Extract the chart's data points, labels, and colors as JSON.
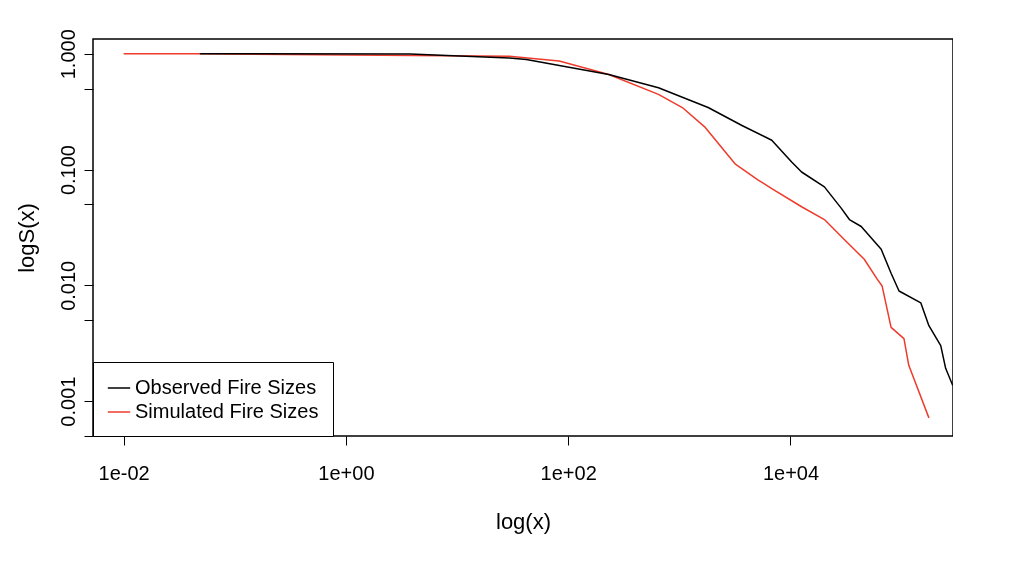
{
  "chart_data": {
    "type": "line",
    "xlabel": "log(x)",
    "ylabel": "logS(x)",
    "log": "xy",
    "grid": false,
    "legend": "bottom left",
    "xlim": [
      0.0053,
      290000
    ],
    "ylim": [
      0.0005,
      1.34
    ],
    "xticks": [
      {
        "value": 0.01,
        "label": "1e-02"
      },
      {
        "value": 1,
        "label": "1e+00"
      },
      {
        "value": 100,
        "label": "1e+02"
      },
      {
        "value": 10000,
        "label": "1e+04"
      }
    ],
    "yticks": [
      {
        "value": 1,
        "label": "1.000"
      },
      {
        "value": 0.5,
        "label": null
      },
      {
        "value": 0.1,
        "label": "0.100"
      },
      {
        "value": 0.05,
        "label": null
      },
      {
        "value": 0.01,
        "label": "0.010"
      },
      {
        "value": 0.005,
        "label": null
      },
      {
        "value": 0.001,
        "label": "0.001"
      },
      {
        "value": 0.0005,
        "label": null
      }
    ],
    "series": [
      {
        "name": "Observed Fire Sizes",
        "color": "#000000",
        "x": [
          0.0485,
          3.77,
          29.5,
          42,
          232,
          649,
          1816,
          3660,
          6790,
          10250,
          12590,
          20200,
          28700,
          33900,
          43300,
          65500,
          80400,
          94800,
          149000,
          176000,
          225000,
          249000,
          288000
        ],
        "values": [
          1,
          0.994,
          0.92,
          0.89,
          0.661,
          0.508,
          0.343,
          0.24,
          0.179,
          0.116,
          0.0952,
          0.0708,
          0.0462,
          0.037,
          0.0322,
          0.0205,
          0.0127,
          0.00893,
          0.00705,
          0.00448,
          0.00302,
          0.00192,
          0.00137
        ]
      },
      {
        "name": "Simulated Fire Sizes",
        "color": "#ee3b2c",
        "x": [
          0.01,
          0.0485,
          29.5,
          83,
          232,
          649,
          1064,
          1710,
          3170,
          5090,
          6790,
          12590,
          20200,
          30500,
          46100,
          60300,
          66800,
          80400,
          105000,
          116000,
          176000
        ],
        "values": [
          1,
          1,
          0.95,
          0.866,
          0.661,
          0.446,
          0.343,
          0.231,
          0.112,
          0.0813,
          0.0685,
          0.0477,
          0.037,
          0.0249,
          0.0168,
          0.0113,
          0.00986,
          0.00434,
          0.00347,
          0.00204,
          0.000717
        ]
      }
    ]
  }
}
